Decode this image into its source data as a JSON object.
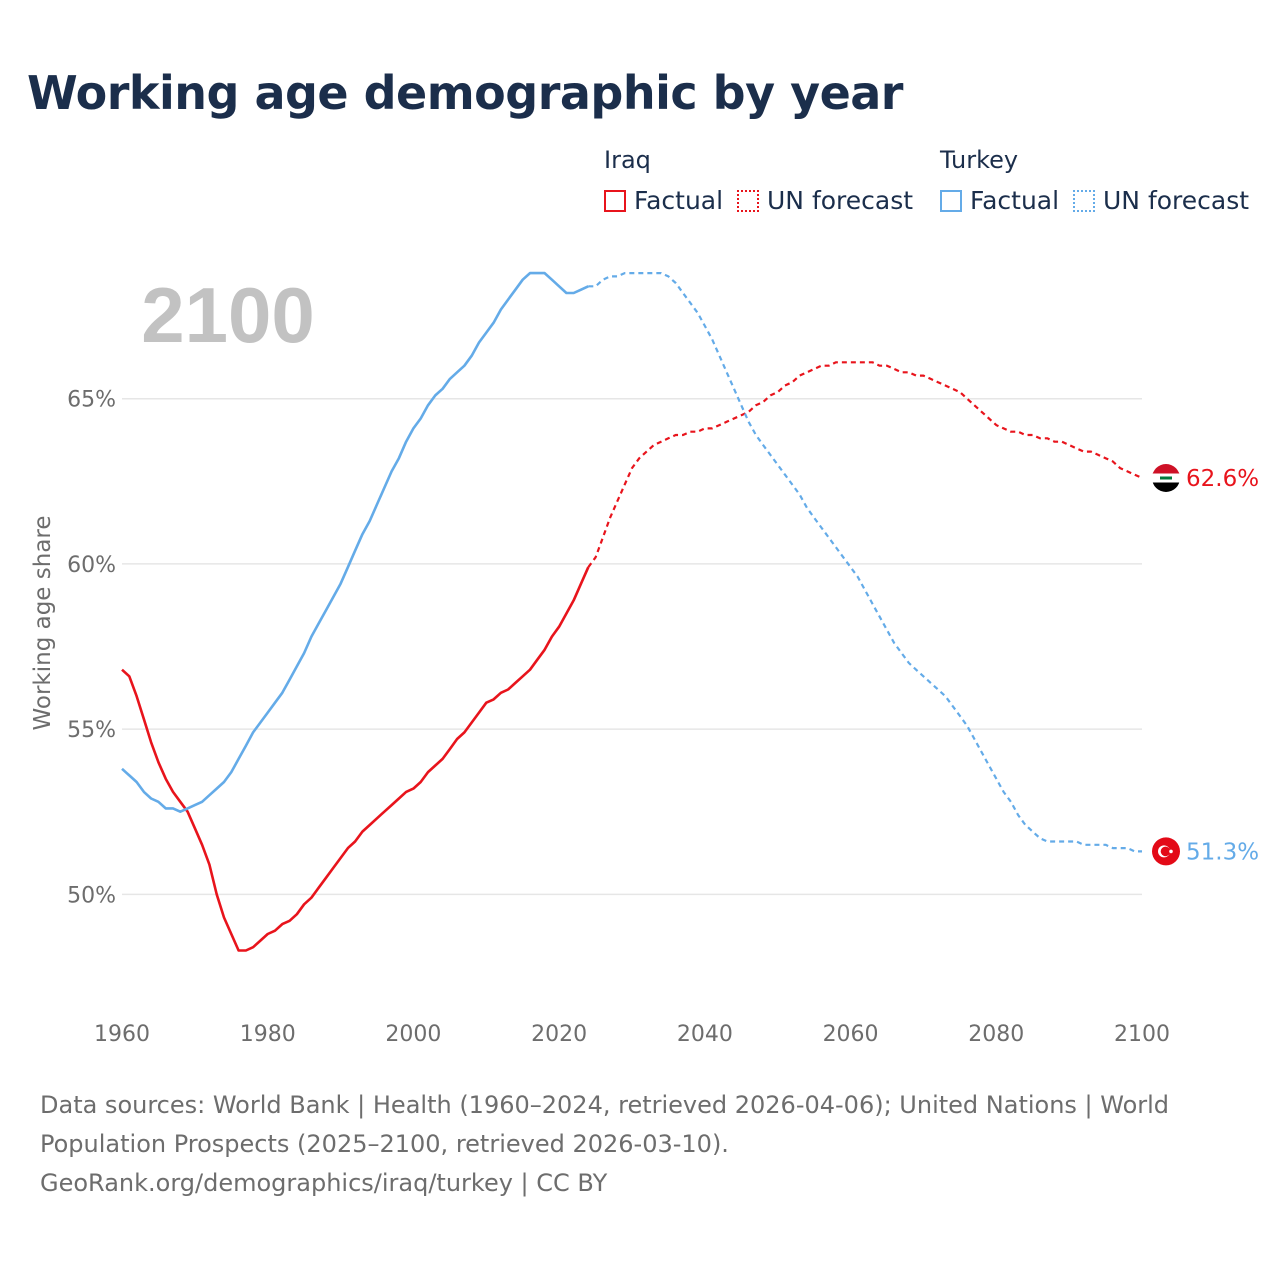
{
  "title": "Working age demographic by year",
  "year_overlay": "2100",
  "legend": {
    "iraq_title": "Iraq",
    "turkey_title": "Turkey",
    "factual": "Factual",
    "forecast": "UN forecast"
  },
  "source": {
    "line1": "Data sources: World Bank | Health (1960–2024, retrieved 2026-04-06); United Nations | World Population Prospects (2025–2100, retrieved 2026-03-10).",
    "line2": "GeoRank.org/demographics/iraq/turkey | CC BY"
  },
  "colors": {
    "iraq": "#e8141c",
    "turkey": "#64abe8",
    "grid": "#e6e6e6",
    "axis_text": "#6d6d6d"
  },
  "chart_data": {
    "type": "line",
    "title": "Working age demographic by year",
    "xlabel": "",
    "ylabel": "Working age share",
    "xlim": [
      1960,
      2100
    ],
    "ylim": [
      46.5,
      69.5
    ],
    "x_ticks": [
      {
        "value": 1960,
        "label": "1960"
      },
      {
        "value": 1980,
        "label": "1980"
      },
      {
        "value": 2000,
        "label": "2000"
      },
      {
        "value": 2020,
        "label": "2020"
      },
      {
        "value": 2040,
        "label": "2040"
      },
      {
        "value": 2060,
        "label": "2060"
      },
      {
        "value": 2080,
        "label": "2080"
      },
      {
        "value": 2100,
        "label": "2100"
      }
    ],
    "y_ticks": [
      {
        "value": 50,
        "label": "50%"
      },
      {
        "value": 55,
        "label": "55%"
      },
      {
        "value": 60,
        "label": "60%"
      },
      {
        "value": 65,
        "label": "65%"
      }
    ],
    "factual_range": [
      1960,
      2024
    ],
    "forecast_range": [
      2024,
      2100
    ],
    "series": [
      {
        "name": "Iraq",
        "end_label": "62.6%",
        "points": [
          [
            1960,
            56.8
          ],
          [
            1961,
            56.6
          ],
          [
            1962,
            56.0
          ],
          [
            1963,
            55.3
          ],
          [
            1964,
            54.6
          ],
          [
            1965,
            54.0
          ],
          [
            1966,
            53.5
          ],
          [
            1967,
            53.1
          ],
          [
            1968,
            52.8
          ],
          [
            1969,
            52.5
          ],
          [
            1970,
            52.0
          ],
          [
            1971,
            51.5
          ],
          [
            1972,
            50.9
          ],
          [
            1973,
            50.0
          ],
          [
            1974,
            49.3
          ],
          [
            1975,
            48.8
          ],
          [
            1976,
            48.3
          ],
          [
            1977,
            48.3
          ],
          [
            1978,
            48.4
          ],
          [
            1979,
            48.6
          ],
          [
            1980,
            48.8
          ],
          [
            1981,
            48.9
          ],
          [
            1982,
            49.1
          ],
          [
            1983,
            49.2
          ],
          [
            1984,
            49.4
          ],
          [
            1985,
            49.7
          ],
          [
            1986,
            49.9
          ],
          [
            1987,
            50.2
          ],
          [
            1988,
            50.5
          ],
          [
            1989,
            50.8
          ],
          [
            1990,
            51.1
          ],
          [
            1991,
            51.4
          ],
          [
            1992,
            51.6
          ],
          [
            1993,
            51.9
          ],
          [
            1994,
            52.1
          ],
          [
            1995,
            52.3
          ],
          [
            1996,
            52.5
          ],
          [
            1997,
            52.7
          ],
          [
            1998,
            52.9
          ],
          [
            1999,
            53.1
          ],
          [
            2000,
            53.2
          ],
          [
            2001,
            53.4
          ],
          [
            2002,
            53.7
          ],
          [
            2003,
            53.9
          ],
          [
            2004,
            54.1
          ],
          [
            2005,
            54.4
          ],
          [
            2006,
            54.7
          ],
          [
            2007,
            54.9
          ],
          [
            2008,
            55.2
          ],
          [
            2009,
            55.5
          ],
          [
            2010,
            55.8
          ],
          [
            2011,
            55.9
          ],
          [
            2012,
            56.1
          ],
          [
            2013,
            56.2
          ],
          [
            2014,
            56.4
          ],
          [
            2015,
            56.6
          ],
          [
            2016,
            56.8
          ],
          [
            2017,
            57.1
          ],
          [
            2018,
            57.4
          ],
          [
            2019,
            57.8
          ],
          [
            2020,
            58.1
          ],
          [
            2021,
            58.5
          ],
          [
            2022,
            58.9
          ],
          [
            2023,
            59.4
          ],
          [
            2024,
            59.9
          ],
          [
            2025,
            60.2
          ],
          [
            2026,
            60.8
          ],
          [
            2027,
            61.4
          ],
          [
            2028,
            61.9
          ],
          [
            2029,
            62.4
          ],
          [
            2030,
            62.9
          ],
          [
            2031,
            63.2
          ],
          [
            2032,
            63.4
          ],
          [
            2033,
            63.6
          ],
          [
            2034,
            63.7
          ],
          [
            2035,
            63.8
          ],
          [
            2036,
            63.9
          ],
          [
            2037,
            63.9
          ],
          [
            2038,
            64.0
          ],
          [
            2039,
            64.0
          ],
          [
            2040,
            64.1
          ],
          [
            2041,
            64.1
          ],
          [
            2042,
            64.2
          ],
          [
            2043,
            64.3
          ],
          [
            2044,
            64.4
          ],
          [
            2045,
            64.5
          ],
          [
            2046,
            64.6
          ],
          [
            2047,
            64.8
          ],
          [
            2048,
            64.9
          ],
          [
            2049,
            65.1
          ],
          [
            2050,
            65.2
          ],
          [
            2051,
            65.4
          ],
          [
            2052,
            65.5
          ],
          [
            2053,
            65.7
          ],
          [
            2054,
            65.8
          ],
          [
            2055,
            65.9
          ],
          [
            2056,
            66.0
          ],
          [
            2057,
            66.0
          ],
          [
            2058,
            66.1
          ],
          [
            2059,
            66.1
          ],
          [
            2060,
            66.1
          ],
          [
            2061,
            66.1
          ],
          [
            2062,
            66.1
          ],
          [
            2063,
            66.1
          ],
          [
            2064,
            66.0
          ],
          [
            2065,
            66.0
          ],
          [
            2066,
            65.9
          ],
          [
            2067,
            65.8
          ],
          [
            2068,
            65.8
          ],
          [
            2069,
            65.7
          ],
          [
            2070,
            65.7
          ],
          [
            2071,
            65.6
          ],
          [
            2072,
            65.5
          ],
          [
            2073,
            65.4
          ],
          [
            2074,
            65.3
          ],
          [
            2075,
            65.2
          ],
          [
            2076,
            65.0
          ],
          [
            2077,
            64.8
          ],
          [
            2078,
            64.6
          ],
          [
            2079,
            64.4
          ],
          [
            2080,
            64.2
          ],
          [
            2081,
            64.1
          ],
          [
            2082,
            64.0
          ],
          [
            2083,
            64.0
          ],
          [
            2084,
            63.9
          ],
          [
            2085,
            63.9
          ],
          [
            2086,
            63.8
          ],
          [
            2087,
            63.8
          ],
          [
            2088,
            63.7
          ],
          [
            2089,
            63.7
          ],
          [
            2090,
            63.6
          ],
          [
            2091,
            63.5
          ],
          [
            2092,
            63.4
          ],
          [
            2093,
            63.4
          ],
          [
            2094,
            63.3
          ],
          [
            2095,
            63.2
          ],
          [
            2096,
            63.1
          ],
          [
            2097,
            62.9
          ],
          [
            2098,
            62.8
          ],
          [
            2099,
            62.7
          ],
          [
            2100,
            62.6
          ]
        ]
      },
      {
        "name": "Turkey",
        "end_label": "51.3%",
        "points": [
          [
            1960,
            53.8
          ],
          [
            1961,
            53.6
          ],
          [
            1962,
            53.4
          ],
          [
            1963,
            53.1
          ],
          [
            1964,
            52.9
          ],
          [
            1965,
            52.8
          ],
          [
            1966,
            52.6
          ],
          [
            1967,
            52.6
          ],
          [
            1968,
            52.5
          ],
          [
            1969,
            52.6
          ],
          [
            1970,
            52.7
          ],
          [
            1971,
            52.8
          ],
          [
            1972,
            53.0
          ],
          [
            1973,
            53.2
          ],
          [
            1974,
            53.4
          ],
          [
            1975,
            53.7
          ],
          [
            1976,
            54.1
          ],
          [
            1977,
            54.5
          ],
          [
            1978,
            54.9
          ],
          [
            1979,
            55.2
          ],
          [
            1980,
            55.5
          ],
          [
            1981,
            55.8
          ],
          [
            1982,
            56.1
          ],
          [
            1983,
            56.5
          ],
          [
            1984,
            56.9
          ],
          [
            1985,
            57.3
          ],
          [
            1986,
            57.8
          ],
          [
            1987,
            58.2
          ],
          [
            1988,
            58.6
          ],
          [
            1989,
            59.0
          ],
          [
            1990,
            59.4
          ],
          [
            1991,
            59.9
          ],
          [
            1992,
            60.4
          ],
          [
            1993,
            60.9
          ],
          [
            1994,
            61.3
          ],
          [
            1995,
            61.8
          ],
          [
            1996,
            62.3
          ],
          [
            1997,
            62.8
          ],
          [
            1998,
            63.2
          ],
          [
            1999,
            63.7
          ],
          [
            2000,
            64.1
          ],
          [
            2001,
            64.4
          ],
          [
            2002,
            64.8
          ],
          [
            2003,
            65.1
          ],
          [
            2004,
            65.3
          ],
          [
            2005,
            65.6
          ],
          [
            2006,
            65.8
          ],
          [
            2007,
            66.0
          ],
          [
            2008,
            66.3
          ],
          [
            2009,
            66.7
          ],
          [
            2010,
            67.0
          ],
          [
            2011,
            67.3
          ],
          [
            2012,
            67.7
          ],
          [
            2013,
            68.0
          ],
          [
            2014,
            68.3
          ],
          [
            2015,
            68.6
          ],
          [
            2016,
            68.8
          ],
          [
            2017,
            68.8
          ],
          [
            2018,
            68.8
          ],
          [
            2019,
            68.6
          ],
          [
            2020,
            68.4
          ],
          [
            2021,
            68.2
          ],
          [
            2022,
            68.2
          ],
          [
            2023,
            68.3
          ],
          [
            2024,
            68.4
          ],
          [
            2025,
            68.4
          ],
          [
            2026,
            68.6
          ],
          [
            2027,
            68.7
          ],
          [
            2028,
            68.7
          ],
          [
            2029,
            68.8
          ],
          [
            2030,
            68.8
          ],
          [
            2031,
            68.8
          ],
          [
            2032,
            68.8
          ],
          [
            2033,
            68.8
          ],
          [
            2034,
            68.8
          ],
          [
            2035,
            68.7
          ],
          [
            2036,
            68.5
          ],
          [
            2037,
            68.2
          ],
          [
            2038,
            67.9
          ],
          [
            2039,
            67.6
          ],
          [
            2040,
            67.2
          ],
          [
            2041,
            66.8
          ],
          [
            2042,
            66.3
          ],
          [
            2043,
            65.8
          ],
          [
            2044,
            65.3
          ],
          [
            2045,
            64.8
          ],
          [
            2046,
            64.3
          ],
          [
            2047,
            63.9
          ],
          [
            2048,
            63.6
          ],
          [
            2049,
            63.3
          ],
          [
            2050,
            63.0
          ],
          [
            2051,
            62.7
          ],
          [
            2052,
            62.4
          ],
          [
            2053,
            62.1
          ],
          [
            2054,
            61.7
          ],
          [
            2055,
            61.4
          ],
          [
            2056,
            61.1
          ],
          [
            2057,
            60.8
          ],
          [
            2058,
            60.5
          ],
          [
            2059,
            60.2
          ],
          [
            2060,
            59.9
          ],
          [
            2061,
            59.6
          ],
          [
            2062,
            59.2
          ],
          [
            2063,
            58.8
          ],
          [
            2064,
            58.4
          ],
          [
            2065,
            58.0
          ],
          [
            2066,
            57.6
          ],
          [
            2067,
            57.3
          ],
          [
            2068,
            57.0
          ],
          [
            2069,
            56.8
          ],
          [
            2070,
            56.6
          ],
          [
            2071,
            56.4
          ],
          [
            2072,
            56.2
          ],
          [
            2073,
            56.0
          ],
          [
            2074,
            55.7
          ],
          [
            2075,
            55.4
          ],
          [
            2076,
            55.1
          ],
          [
            2077,
            54.7
          ],
          [
            2078,
            54.3
          ],
          [
            2079,
            53.9
          ],
          [
            2080,
            53.5
          ],
          [
            2081,
            53.1
          ],
          [
            2082,
            52.8
          ],
          [
            2083,
            52.4
          ],
          [
            2084,
            52.1
          ],
          [
            2085,
            51.9
          ],
          [
            2086,
            51.7
          ],
          [
            2087,
            51.6
          ],
          [
            2088,
            51.6
          ],
          [
            2089,
            51.6
          ],
          [
            2090,
            51.6
          ],
          [
            2091,
            51.6
          ],
          [
            2092,
            51.5
          ],
          [
            2093,
            51.5
          ],
          [
            2094,
            51.5
          ],
          [
            2095,
            51.5
          ],
          [
            2096,
            51.4
          ],
          [
            2097,
            51.4
          ],
          [
            2098,
            51.4
          ],
          [
            2099,
            51.3
          ],
          [
            2100,
            51.3
          ]
        ]
      }
    ]
  }
}
